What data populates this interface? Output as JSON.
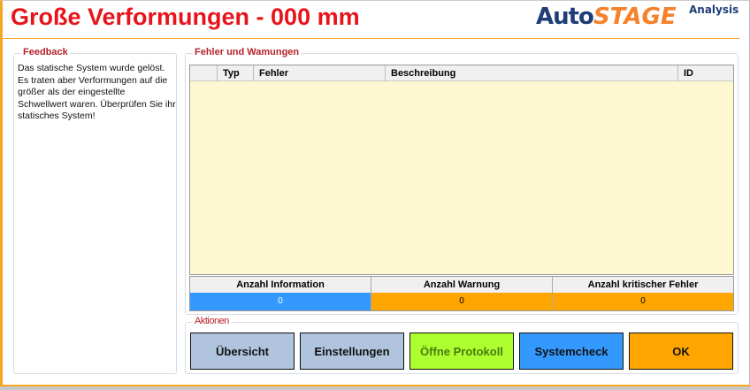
{
  "title": "Große Verformungen - 000 mm",
  "logo": {
    "auto": "Auto",
    "stage": "STAGE",
    "analysis": "Analysis"
  },
  "feedback": {
    "label": "Feedback",
    "text": "Das statische System wurde gelöst. Es traten aber Verformungen auf die größer als der eingestellte Schwellwert waren. Überprüfen Sie ihr statisches System!"
  },
  "errors": {
    "label": "Fehler und Wamungen",
    "columns": [
      "",
      "Typ",
      "Fehler",
      "Beschreibung",
      "ID"
    ],
    "rows": []
  },
  "summary": {
    "headers": [
      "Anzahl Information",
      "Anzahl Warnung",
      "Anzahl kritischer Fehler"
    ],
    "values": [
      "0",
      "0",
      "0"
    ],
    "colors": [
      "#3399ff",
      "#ffa500",
      "#ffa500"
    ]
  },
  "actions": {
    "label": "Aktionen",
    "buttons": [
      {
        "label": "Übersicht",
        "color": "#b0c4de"
      },
      {
        "label": "Einstellungen",
        "color": "#b0c4de"
      },
      {
        "label": "Öffne Protokoll",
        "color": "#adff2f"
      },
      {
        "label": "Systemcheck",
        "color": "#3399ff"
      },
      {
        "label": "OK",
        "color": "#ffa500"
      }
    ]
  }
}
